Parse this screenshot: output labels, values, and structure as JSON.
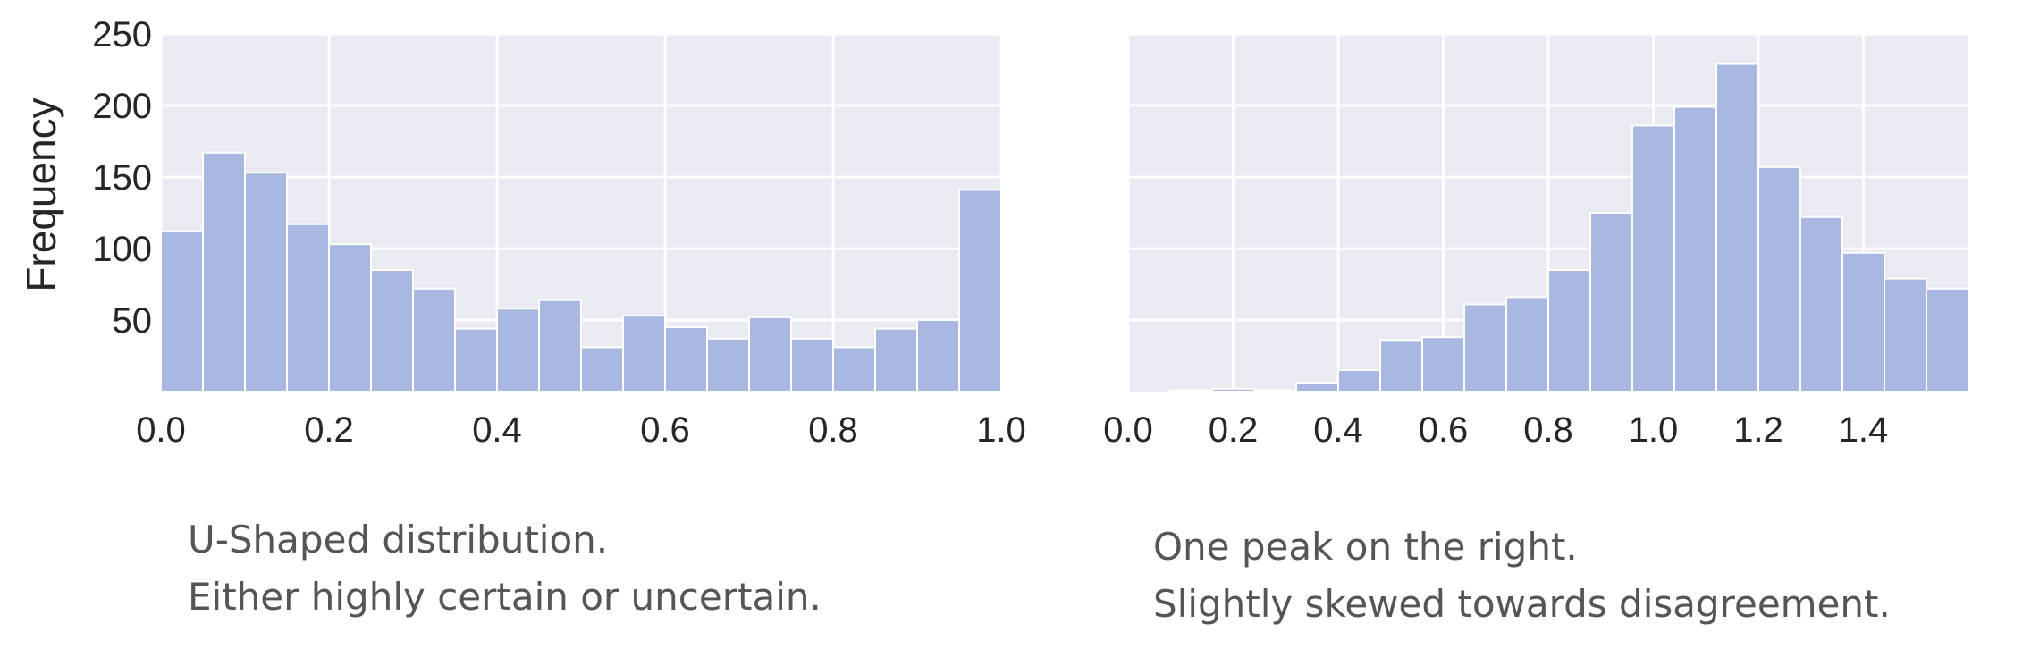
{
  "colors": {
    "plot_bg": "#eaeaf2",
    "grid": "#ffffff",
    "bar_fill": "#a9b8e1",
    "bar_edge": "#ffffff",
    "text": "#262626",
    "caption": "#555555"
  },
  "chart_data": [
    {
      "type": "bar",
      "subtype": "histogram",
      "title": "",
      "xlabel": "",
      "ylabel": "Frequency",
      "xlim": [
        0.0,
        1.0
      ],
      "ylim": [
        0,
        250
      ],
      "grid": true,
      "xticks": [
        "0.0",
        "0.2",
        "0.4",
        "0.6",
        "0.8",
        "1.0"
      ],
      "yticks": [
        "50",
        "100",
        "150",
        "200",
        "250"
      ],
      "bin_edges": [
        0.0,
        0.05,
        0.1,
        0.15,
        0.2,
        0.25,
        0.3,
        0.35,
        0.4,
        0.45,
        0.5,
        0.55,
        0.6,
        0.65,
        0.7,
        0.75,
        0.8,
        0.85,
        0.9,
        0.95,
        1.0
      ],
      "values": [
        112,
        167,
        153,
        117,
        103,
        85,
        72,
        44,
        58,
        64,
        31,
        53,
        45,
        37,
        52,
        37,
        31,
        44,
        50,
        141
      ]
    },
    {
      "type": "bar",
      "subtype": "histogram",
      "title": "",
      "xlabel": "",
      "ylabel": "",
      "xlim": [
        0.0,
        1.6
      ],
      "ylim": [
        0,
        250
      ],
      "grid": true,
      "xticks": [
        "0.0",
        "0.2",
        "0.4",
        "0.6",
        "0.8",
        "1.0",
        "1.2",
        "1.4"
      ],
      "yticks": [],
      "bin_edges": [
        0.0,
        0.08,
        0.16,
        0.24,
        0.32,
        0.4,
        0.48,
        0.56,
        0.64,
        0.72,
        0.8,
        0.88,
        0.96,
        1.04,
        1.12,
        1.2,
        1.28,
        1.36,
        1.44,
        1.52,
        1.6
      ],
      "values": [
        0,
        1,
        2,
        1,
        6,
        15,
        36,
        38,
        61,
        66,
        85,
        125,
        186,
        199,
        229,
        157,
        122,
        97,
        79,
        72
      ]
    }
  ],
  "captions": {
    "left": {
      "line1": "U-Shaped distribution.",
      "line2": "Either highly certain or uncertain."
    },
    "right": {
      "line1": "One peak on the right.",
      "line2": "Slightly skewed towards disagreement."
    }
  }
}
